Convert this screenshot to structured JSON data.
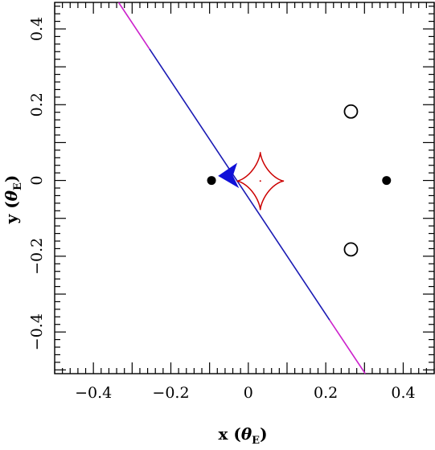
{
  "chart_data": {
    "type": "scatter",
    "title": "",
    "xlabel": {
      "prefix": "x (",
      "greek": "θ",
      "sub": "E",
      "suffix": ")"
    },
    "ylabel": {
      "prefix": "y (",
      "greek": "θ",
      "sub": "E",
      "suffix": ")"
    },
    "xlim": [
      -0.5,
      0.48
    ],
    "ylim": [
      -0.51,
      0.47
    ],
    "xticks": [
      {
        "value": -0.4,
        "label": "−0.4"
      },
      {
        "value": -0.2,
        "label": "−0.2"
      },
      {
        "value": 0,
        "label": "0"
      },
      {
        "value": 0.2,
        "label": "0.2"
      },
      {
        "value": 0.4,
        "label": "0.4"
      }
    ],
    "yticks": [
      {
        "value": -0.4,
        "label": "−0.4"
      },
      {
        "value": -0.2,
        "label": "−0.2"
      },
      {
        "value": 0,
        "label": "0"
      },
      {
        "value": 0.2,
        "label": "0.2"
      },
      {
        "value": 0.4,
        "label": "0.4"
      }
    ],
    "grid": false,
    "lens_masses": [
      [
        -0.095,
        0.0
      ],
      [
        0.357,
        0.0
      ]
    ],
    "images": [
      [
        0.265,
        0.182
      ],
      [
        0.265,
        -0.182
      ]
    ],
    "caustic": {
      "cusps": [
        [
          -0.03,
          0.0
        ],
        [
          0.092,
          0.0
        ],
        [
          -0.01,
          0.075
        ],
        [
          -0.01,
          -0.078
        ]
      ],
      "color": "#cc0000"
    },
    "source_trajectory": {
      "points": [
        [
          -0.335,
          0.47
        ],
        [
          0.302,
          -0.51
        ]
      ],
      "highlight_color": "#1a1ab4",
      "outer_color": "#cc22cc",
      "highlight_range_x": [
        -0.255,
        0.21
      ]
    },
    "source_marker": {
      "position": [
        -0.043,
        0.01
      ],
      "color": "#1010d8"
    },
    "colors": {
      "lens": "#000000",
      "image_stroke": "#000000",
      "axes": "#000000"
    }
  }
}
